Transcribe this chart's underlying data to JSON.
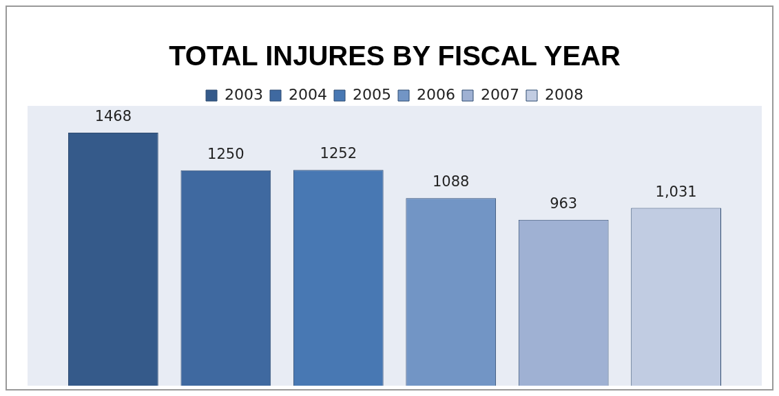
{
  "chart_data": {
    "type": "bar",
    "title": "TOTAL INJURES BY FISCAL YEAR",
    "categories": [
      null
    ],
    "series": [
      {
        "name": "2003",
        "color": "#355a8a",
        "values": [
          1468
        ],
        "value_labels": [
          "1468"
        ]
      },
      {
        "name": "2004",
        "color": "#3f69a0",
        "values": [
          1250
        ],
        "value_labels": [
          "1250"
        ]
      },
      {
        "name": "2005",
        "color": "#4878b3",
        "values": [
          1252
        ],
        "value_labels": [
          "1252"
        ]
      },
      {
        "name": "2006",
        "color": "#7295c5",
        "values": [
          1088
        ],
        "value_labels": [
          "1088"
        ]
      },
      {
        "name": "2007",
        "color": "#9fb1d3",
        "values": [
          963
        ],
        "value_labels": [
          "963"
        ]
      },
      {
        "name": "2008",
        "color": "#c1cce2",
        "values": [
          1031
        ],
        "value_labels": [
          "1,031"
        ]
      }
    ],
    "legend": "top"
  }
}
